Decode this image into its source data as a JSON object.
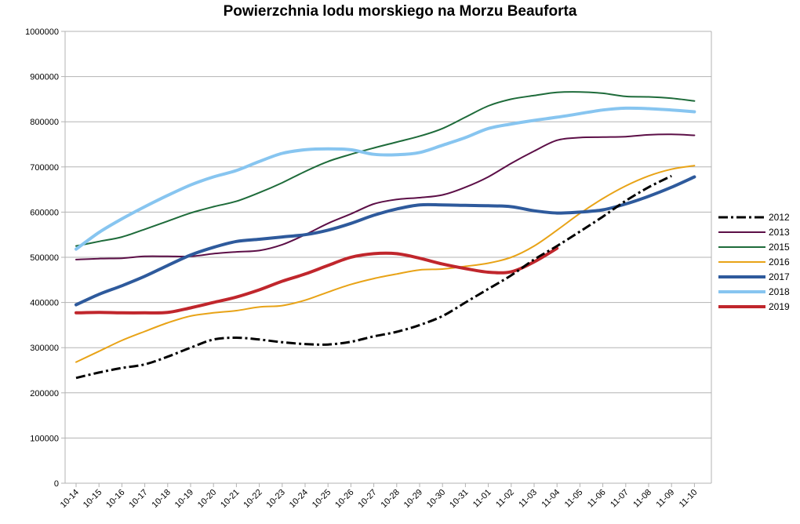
{
  "chart_data": {
    "type": "line",
    "title": "Powierzchnia lodu morskiego na Morzu Beauforta",
    "xlabel": "",
    "ylabel": "",
    "ylim": [
      0,
      1000000
    ],
    "yticks": [
      0,
      100000,
      200000,
      300000,
      400000,
      500000,
      600000,
      700000,
      800000,
      900000,
      1000000
    ],
    "grid": true,
    "legend_position": "right",
    "categories": [
      "10-14",
      "10-15",
      "10-16",
      "10-17",
      "10-18",
      "10-19",
      "10-20",
      "10-21",
      "10-22",
      "10-23",
      "10-24",
      "10-25",
      "10-26",
      "10-27",
      "10-28",
      "10-29",
      "10-30",
      "10-31",
      "11-01",
      "11-02",
      "11-03",
      "11-04",
      "11-05",
      "11-06",
      "11-07",
      "11-08",
      "11-09",
      "11-10"
    ],
    "series": [
      {
        "name": "2012",
        "color": "#000000",
        "style": "dashdot",
        "width": 3,
        "values": [
          233000,
          245000,
          255000,
          263000,
          280000,
          300000,
          318000,
          322000,
          318000,
          312000,
          308000,
          307000,
          313000,
          325000,
          335000,
          350000,
          370000,
          400000,
          430000,
          460000,
          495000,
          525000,
          557000,
          590000,
          625000,
          655000,
          680000,
          null
        ]
      },
      {
        "name": "2013",
        "color": "#5c0f47",
        "style": "solid",
        "width": 2,
        "values": [
          495000,
          497000,
          498000,
          502000,
          502000,
          502000,
          508000,
          512000,
          515000,
          528000,
          550000,
          575000,
          596000,
          618000,
          628000,
          632000,
          638000,
          655000,
          678000,
          708000,
          735000,
          759000,
          765000,
          766000,
          767000,
          771000,
          772000,
          770000
        ]
      },
      {
        "name": "2015",
        "color": "#1e6b3a",
        "style": "solid",
        "width": 2,
        "values": [
          525000,
          535000,
          545000,
          562000,
          580000,
          598000,
          612000,
          624000,
          643000,
          665000,
          690000,
          712000,
          728000,
          742000,
          755000,
          768000,
          785000,
          810000,
          835000,
          850000,
          858000,
          865000,
          866000,
          863000,
          856000,
          855000,
          852000,
          846000
        ]
      },
      {
        "name": "2016",
        "color": "#e8a317",
        "style": "solid",
        "width": 2,
        "values": [
          268000,
          292000,
          316000,
          336000,
          355000,
          370000,
          377000,
          382000,
          390000,
          393000,
          405000,
          423000,
          440000,
          453000,
          463000,
          472000,
          474000,
          480000,
          487000,
          500000,
          525000,
          560000,
          597000,
          630000,
          658000,
          680000,
          695000,
          703000
        ]
      },
      {
        "name": "2017",
        "color": "#2e5a9c",
        "style": "solid",
        "width": 4,
        "values": [
          395000,
          418000,
          437000,
          458000,
          482000,
          505000,
          522000,
          535000,
          540000,
          545000,
          550000,
          560000,
          575000,
          593000,
          607000,
          616000,
          616000,
          615000,
          614000,
          612000,
          603000,
          598000,
          600000,
          605000,
          618000,
          635000,
          655000,
          678000
        ]
      },
      {
        "name": "2018",
        "color": "#87c5f0",
        "style": "solid",
        "width": 4,
        "values": [
          518000,
          555000,
          585000,
          612000,
          637000,
          660000,
          678000,
          692000,
          712000,
          730000,
          738000,
          740000,
          738000,
          728000,
          727000,
          732000,
          748000,
          765000,
          785000,
          795000,
          803000,
          810000,
          818000,
          826000,
          830000,
          829000,
          826000,
          822000
        ]
      },
      {
        "name": "2019",
        "color": "#c0262c",
        "style": "solid",
        "width": 4,
        "values": [
          377000,
          378000,
          377000,
          377000,
          378000,
          388000,
          400000,
          412000,
          428000,
          447000,
          463000,
          482000,
          500000,
          508000,
          508000,
          498000,
          485000,
          475000,
          467000,
          468000,
          490000,
          520000,
          null,
          null,
          null,
          null,
          null,
          null
        ]
      }
    ]
  }
}
